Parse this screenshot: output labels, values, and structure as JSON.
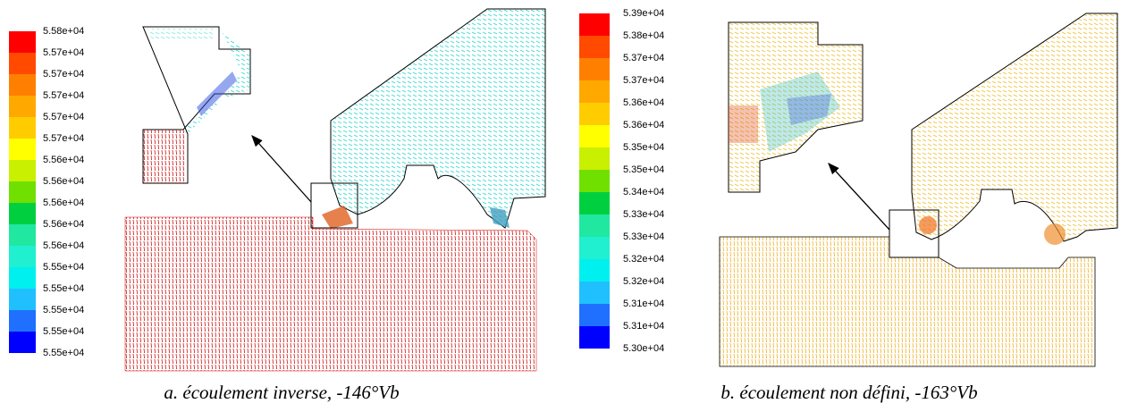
{
  "panels": [
    {
      "legend": [
        "5.58e+04",
        "5.57e+04",
        "5.57e+04",
        "5.57e+04",
        "5.57e+04",
        "5.57e+04",
        "5.56e+04",
        "5.56e+04",
        "5.56e+04",
        "5.56e+04",
        "5.56e+04",
        "5.55e+04",
        "5.55e+04",
        "5.55e+04",
        "5.55e+04",
        "5.55e+04"
      ],
      "caption": "a. écoulement inverse, -146°Vb"
    },
    {
      "legend": [
        "5.39e+04",
        "5.38e+04",
        "5.37e+04",
        "5.37e+04",
        "5.36e+04",
        "5.36e+04",
        "5.35e+04",
        "5.35e+04",
        "5.34e+04",
        "5.33e+04",
        "5.33e+04",
        "5.32e+04",
        "5.32e+04",
        "5.31e+04",
        "5.31e+04",
        "5.30e+04"
      ],
      "caption": "b. écoulement non défini, -163°Vb"
    }
  ],
  "colors": [
    "#ff0000",
    "#ff4a00",
    "#ff8000",
    "#ffa800",
    "#ffcc00",
    "#ffff00",
    "#c8f000",
    "#70e000",
    "#00d040",
    "#20e8a0",
    "#20f0d0",
    "#00f0f0",
    "#20c0ff",
    "#2070ff",
    "#0000ff"
  ]
}
